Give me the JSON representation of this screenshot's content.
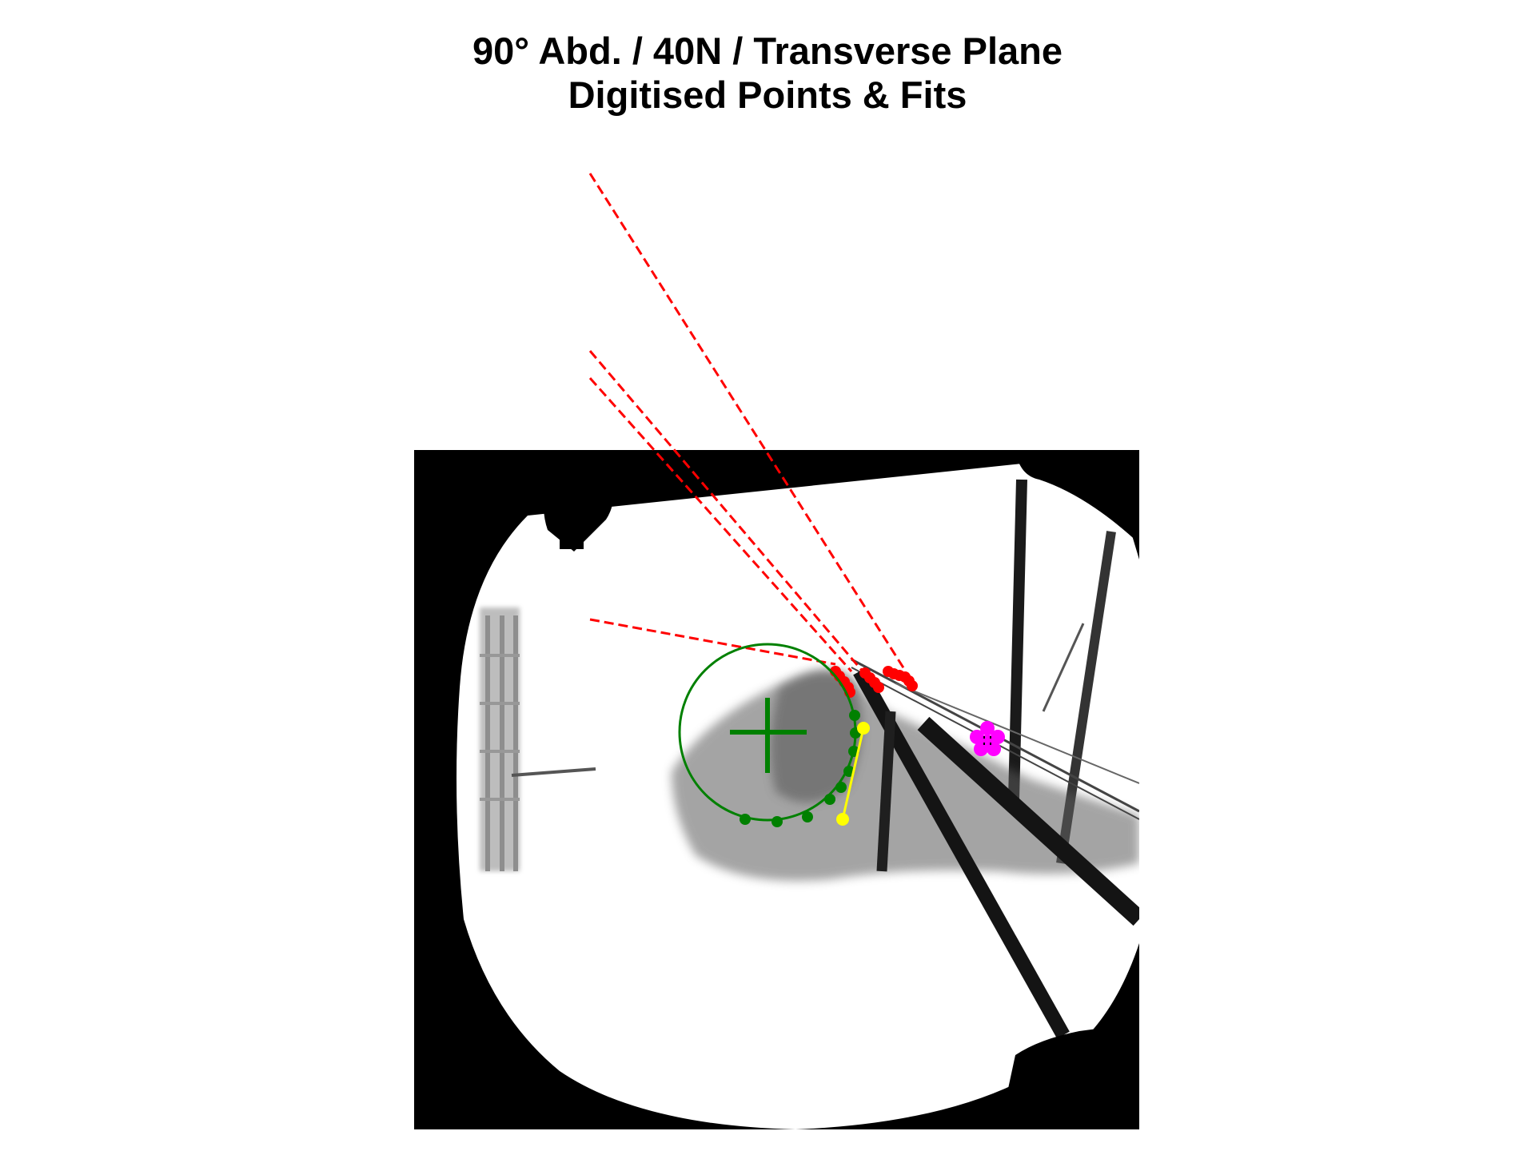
{
  "figure": {
    "title_line_1": "90° Abd. / 40N / Transverse Plane",
    "title_line_2": "Digitised Points & Fits"
  },
  "colors": {
    "background": "#ffffff",
    "xray_dark": "#000000",
    "xray_light": "#ffffff",
    "tendon_points": "#ff0000",
    "tendon_lines": "#ff0000",
    "head_fit": "#008000",
    "segment": "#ffff00",
    "marker": "#ff00ff"
  },
  "overlays": {
    "red_dashed_line_count": 4,
    "red_point_count": 15,
    "green_arc_point_count": 9,
    "yellow_segment_point_count": 2,
    "magenta_point_count": 5
  }
}
